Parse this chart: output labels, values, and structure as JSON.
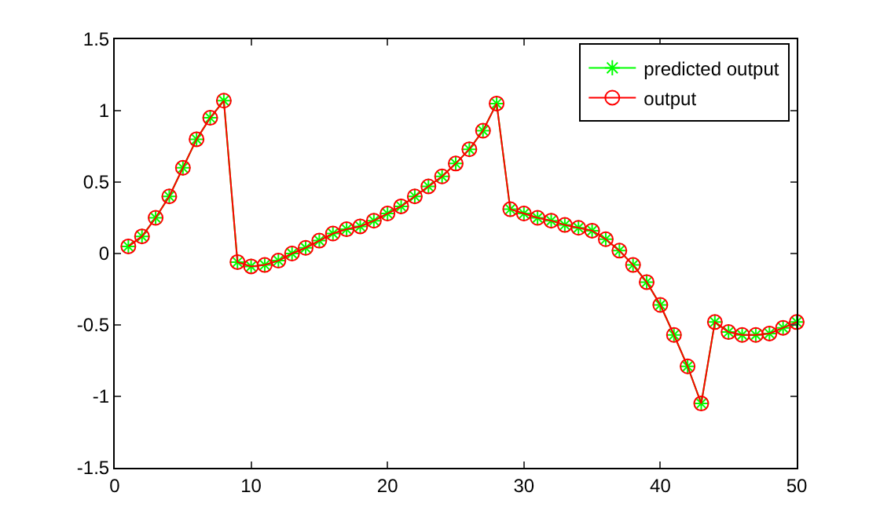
{
  "chart_data": {
    "type": "line",
    "x": [
      1,
      2,
      3,
      4,
      5,
      6,
      7,
      8,
      9,
      10,
      11,
      12,
      13,
      14,
      15,
      16,
      17,
      18,
      19,
      20,
      21,
      22,
      23,
      24,
      25,
      26,
      27,
      28,
      29,
      30,
      31,
      32,
      33,
      34,
      35,
      36,
      37,
      38,
      39,
      40,
      41,
      42,
      43,
      44,
      45,
      46,
      47,
      48,
      49,
      50
    ],
    "series": [
      {
        "name": "predicted output",
        "color": "#00ff00",
        "marker": "cross",
        "values": [
          0.05,
          0.12,
          0.25,
          0.4,
          0.6,
          0.8,
          0.95,
          1.07,
          -0.06,
          -0.09,
          -0.08,
          -0.05,
          0.0,
          0.04,
          0.09,
          0.14,
          0.17,
          0.19,
          0.23,
          0.28,
          0.33,
          0.4,
          0.47,
          0.54,
          0.63,
          0.73,
          0.86,
          1.05,
          0.31,
          0.28,
          0.25,
          0.23,
          0.2,
          0.18,
          0.16,
          0.1,
          0.02,
          -0.08,
          -0.2,
          -0.36,
          -0.57,
          -0.79,
          -1.05,
          -0.48,
          -0.55,
          -0.57,
          -0.57,
          -0.56,
          -0.52,
          -0.48
        ]
      },
      {
        "name": "output",
        "color": "#ff0000",
        "marker": "circle",
        "values": [
          0.05,
          0.12,
          0.25,
          0.4,
          0.6,
          0.8,
          0.95,
          1.07,
          -0.06,
          -0.09,
          -0.08,
          -0.05,
          0.0,
          0.04,
          0.09,
          0.14,
          0.17,
          0.19,
          0.23,
          0.28,
          0.33,
          0.4,
          0.47,
          0.54,
          0.63,
          0.73,
          0.86,
          1.05,
          0.31,
          0.28,
          0.25,
          0.23,
          0.2,
          0.18,
          0.16,
          0.1,
          0.02,
          -0.08,
          -0.2,
          -0.36,
          -0.57,
          -0.79,
          -1.05,
          -0.48,
          -0.55,
          -0.57,
          -0.57,
          -0.56,
          -0.52,
          -0.48
        ]
      }
    ],
    "xlim": [
      0,
      50
    ],
    "xticks": [
      0,
      10,
      20,
      30,
      40,
      50
    ],
    "ylim": [
      -1.5,
      1.5
    ],
    "yticks": [
      -1.5,
      -1,
      -0.5,
      0,
      0.5,
      1,
      1.5
    ],
    "grid": false,
    "legend": "top right",
    "line_style": "solid"
  }
}
